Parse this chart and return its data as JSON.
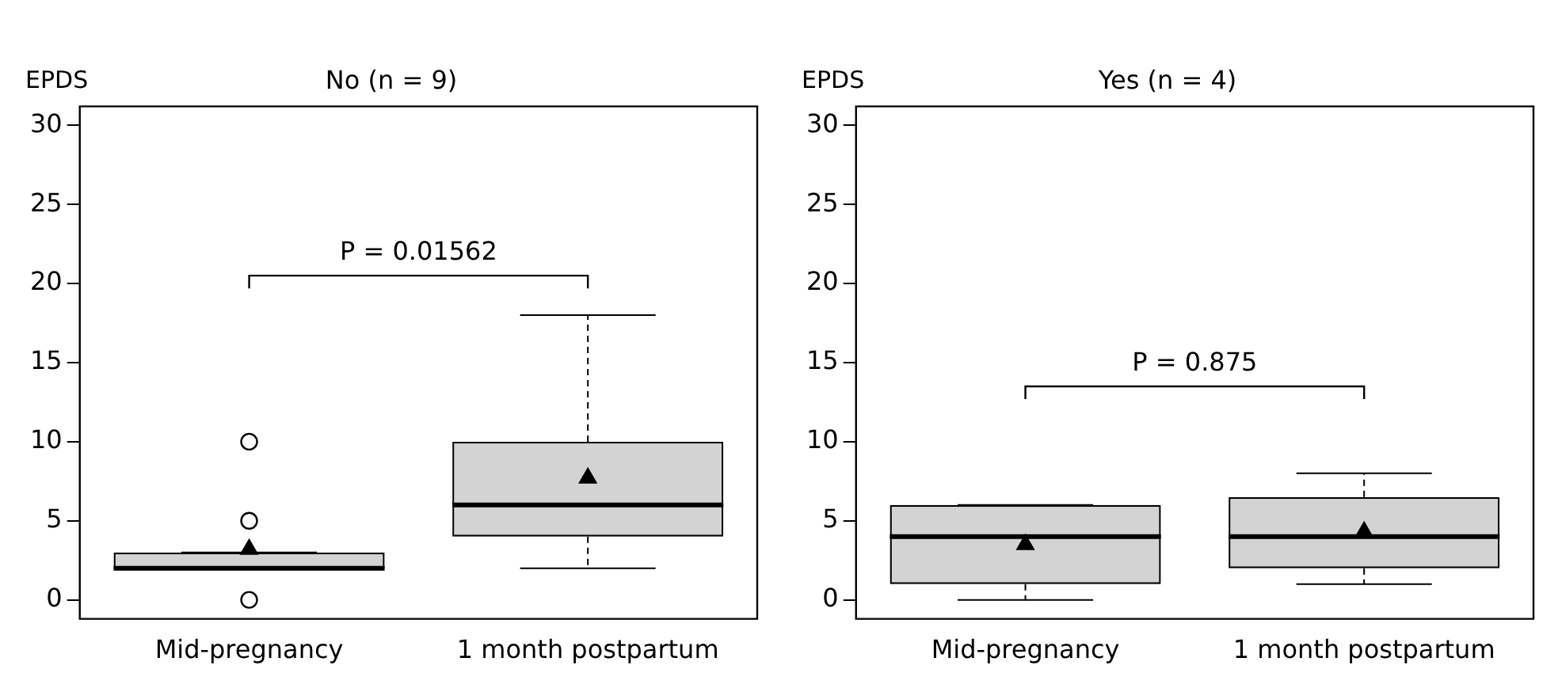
{
  "chart_data": [
    {
      "type": "box",
      "title": "No (n = 9)",
      "ylabel": "EPDS",
      "categories": [
        "Mid-pregnancy",
        "1 month postpartum"
      ],
      "boxes": [
        {
          "low": 2,
          "q1": 2,
          "median": 2,
          "q3": 3,
          "high": 3,
          "mean": 3.2,
          "outliers": [
            0,
            5,
            10
          ]
        },
        {
          "low": 2,
          "q1": 4,
          "median": 6,
          "q3": 10,
          "high": 18,
          "mean": 7.7
        }
      ],
      "ylim": [
        -1.2,
        31.2
      ],
      "yticks": [
        0,
        5,
        10,
        15,
        20,
        25,
        30
      ],
      "annotations": [
        "P = 0.01562"
      ]
    },
    {
      "type": "box",
      "title": "Yes (n = 4)",
      "ylabel": "EPDS",
      "categories": [
        "Mid-pregnancy",
        "1 month postpartum"
      ],
      "boxes": [
        {
          "low": 0,
          "q1": 1,
          "median": 4,
          "q3": 6,
          "high": 6,
          "mean": 3.5
        },
        {
          "low": 1,
          "q1": 2,
          "median": 4,
          "q3": 6.5,
          "high": 8,
          "mean": 4.3
        }
      ],
      "ylim": [
        -1.2,
        31.2
      ],
      "yticks": [
        0,
        5,
        10,
        15,
        20,
        25,
        30
      ],
      "annotations": [
        "P = 0.875"
      ]
    }
  ]
}
